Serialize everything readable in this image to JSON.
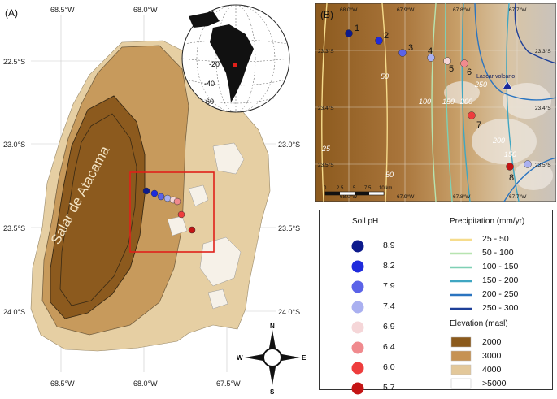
{
  "panel_a": {
    "label": "(A)",
    "lon_top": [
      "68.5°W",
      "68.0°W"
    ],
    "lon_bottom": [
      "68.5°W",
      "68.0°W",
      "67.5°W"
    ],
    "lat_left": [
      "22.5°S",
      "23.0°S",
      "23.5°S",
      "24.0°S"
    ],
    "lat_right": [
      "23.0°S",
      "23.5°S",
      "24.0°S"
    ],
    "salar_label": "Salar de Atacama",
    "globe_lat_labels": [
      "-20",
      "-40",
      "-60"
    ],
    "compass": {
      "n": "N",
      "s": "S",
      "e": "E",
      "w": "W"
    }
  },
  "panel_b": {
    "label": "(B)",
    "lon_top": [
      "68.0°W",
      "67.9°W",
      "67.8°W",
      "67.7°W"
    ],
    "lon_bottom": [
      "68.0°W",
      "67.9°W",
      "67.8°W",
      "67.7°W"
    ],
    "lat_left": [
      "23.3°S",
      "23.4°S",
      "23.5°S"
    ],
    "lat_right": [
      "23.3°S",
      "23.4°S",
      "23.5°S"
    ],
    "site_labels": [
      "1",
      "2",
      "3",
      "4",
      "5",
      "6",
      "7",
      "8"
    ],
    "contour_labels": [
      "50",
      "100",
      "150",
      "200",
      "250",
      "25",
      "50",
      "200",
      "150"
    ],
    "volcano_label": "Lascar volcano",
    "scale_labels": [
      "0",
      "2.5",
      "5",
      "7.5",
      "10 km"
    ]
  },
  "legend": {
    "ph_title": "Soil pH",
    "ph_items": [
      {
        "value": "8.9",
        "color": "#0d1a8c"
      },
      {
        "value": "8.2",
        "color": "#1f2bdc"
      },
      {
        "value": "7.9",
        "color": "#5b63e8"
      },
      {
        "value": "7.4",
        "color": "#aab0f0"
      },
      {
        "value": "6.9",
        "color": "#f5d6d8"
      },
      {
        "value": "6.4",
        "color": "#f08a8e"
      },
      {
        "value": "6.0",
        "color": "#ee3d3d"
      },
      {
        "value": "5.7",
        "color": "#c41414"
      }
    ],
    "precip_title": "Precipitation (mm/yr)",
    "precip_items": [
      {
        "label": "25 - 50",
        "color": "#f6dc8c"
      },
      {
        "label": "50 - 100",
        "color": "#b7e4b0"
      },
      {
        "label": "100 - 150",
        "color": "#7fd0b4"
      },
      {
        "label": "150 - 200",
        "color": "#3fa6c2"
      },
      {
        "label": "200 - 250",
        "color": "#2a74c0"
      },
      {
        "label": "250 - 300",
        "color": "#1d3f98"
      }
    ],
    "elev_title": "Elevation (masl)",
    "elev_items": [
      {
        "label": "2000",
        "color": "#8b5a1c"
      },
      {
        "label": "3000",
        "color": "#c69253"
      },
      {
        "label": "4000",
        "color": "#e3c89a"
      },
      {
        "label": ">5000",
        "color": "#ffffff"
      }
    ]
  }
}
